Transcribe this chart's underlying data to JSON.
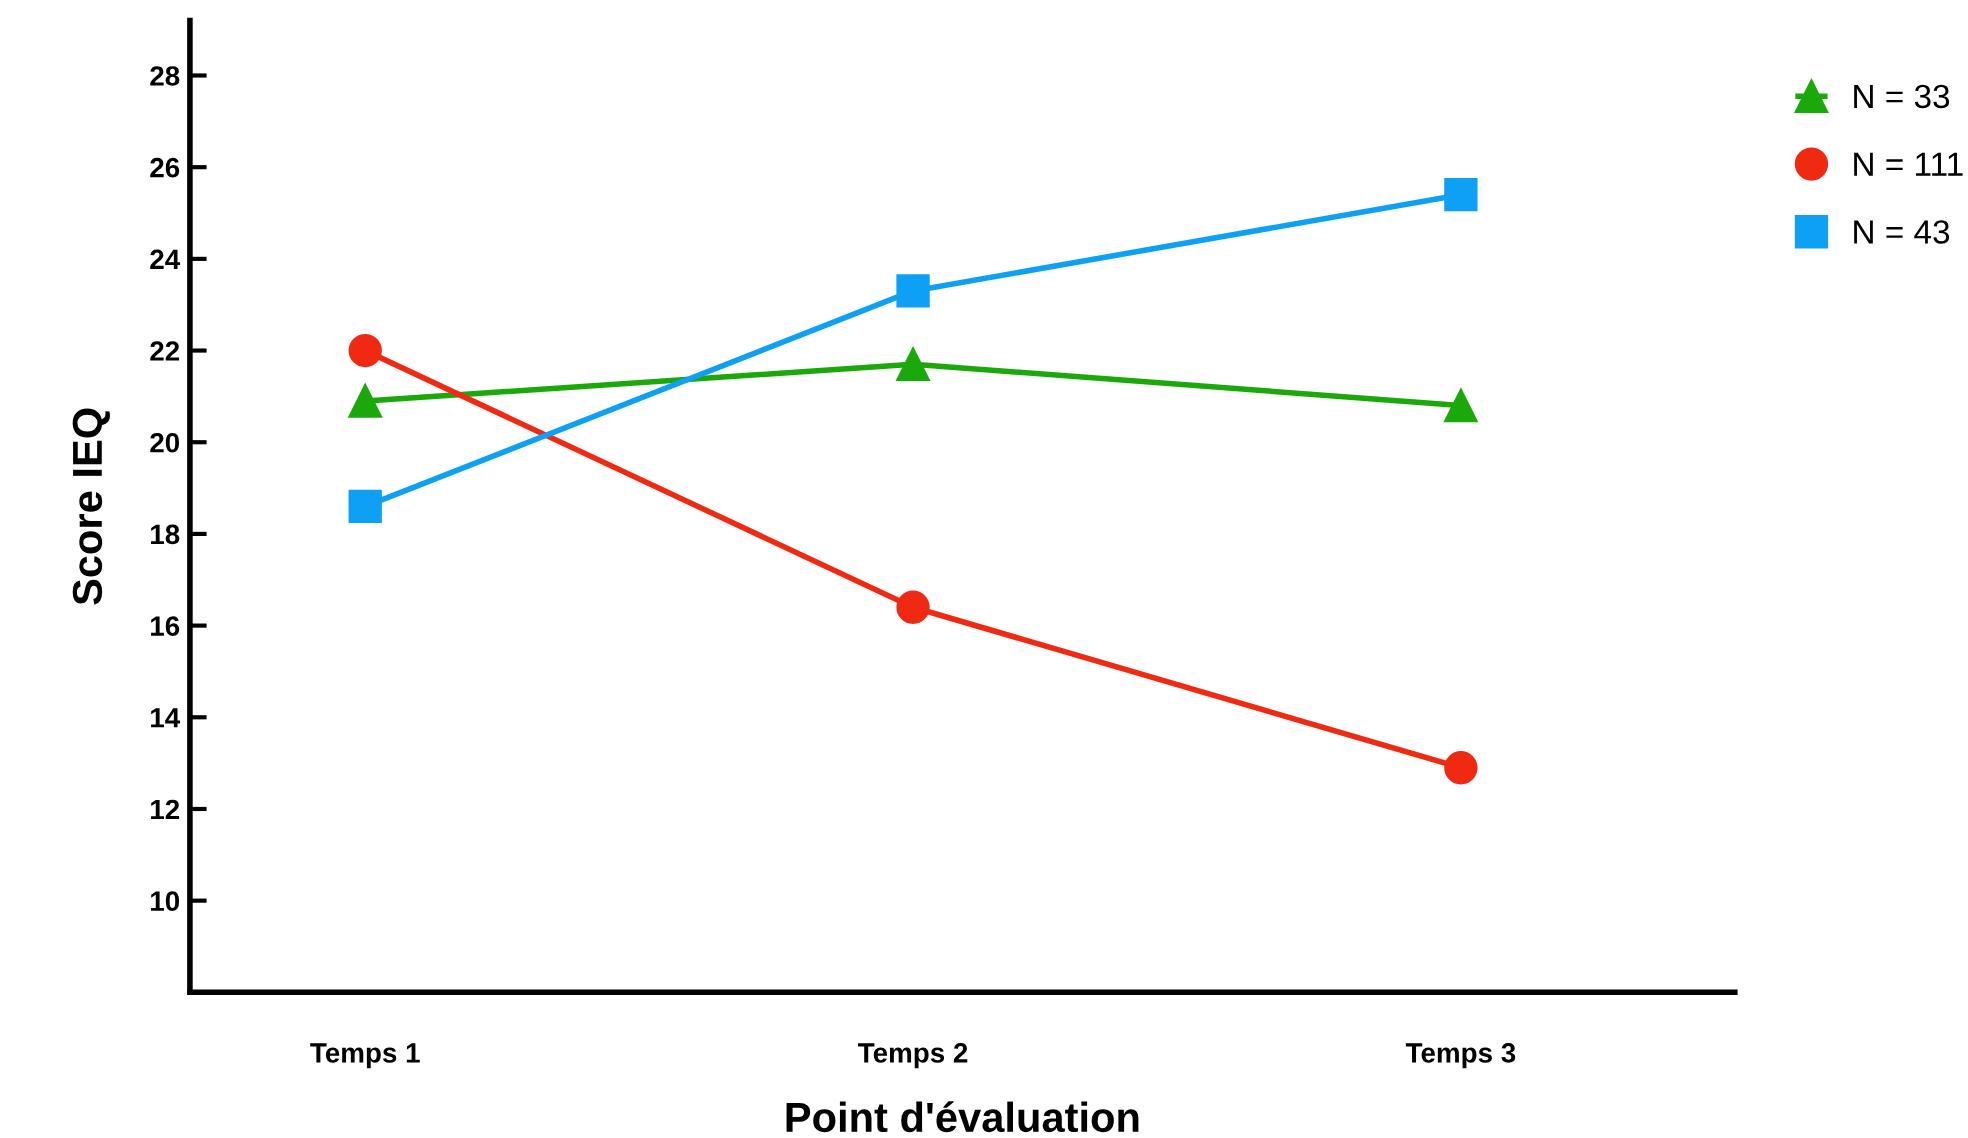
{
  "chart_data": {
    "type": "line",
    "xlabel": "Point d'évaluation",
    "ylabel": "Score IEQ",
    "categories": [
      "Temps 1",
      "Temps 2",
      "Temps 3"
    ],
    "series": [
      {
        "name": "N = 33",
        "color": "#1aa80a",
        "marker": "triangle",
        "values": [
          20.9,
          21.7,
          20.8
        ]
      },
      {
        "name": "N = 111",
        "color": "#f02a12",
        "marker": "circle",
        "values": [
          22.0,
          16.4,
          12.9
        ]
      },
      {
        "name": "N = 43",
        "color": "#0ea0f5",
        "marker": "square",
        "values": [
          18.6,
          23.3,
          25.4
        ]
      }
    ],
    "ylim": [
      8,
      29.2
    ],
    "yticks": [
      10,
      12,
      14,
      16,
      18,
      20,
      22,
      24,
      26,
      28
    ],
    "grid": false,
    "legend": "top right",
    "line_style": "solid"
  }
}
